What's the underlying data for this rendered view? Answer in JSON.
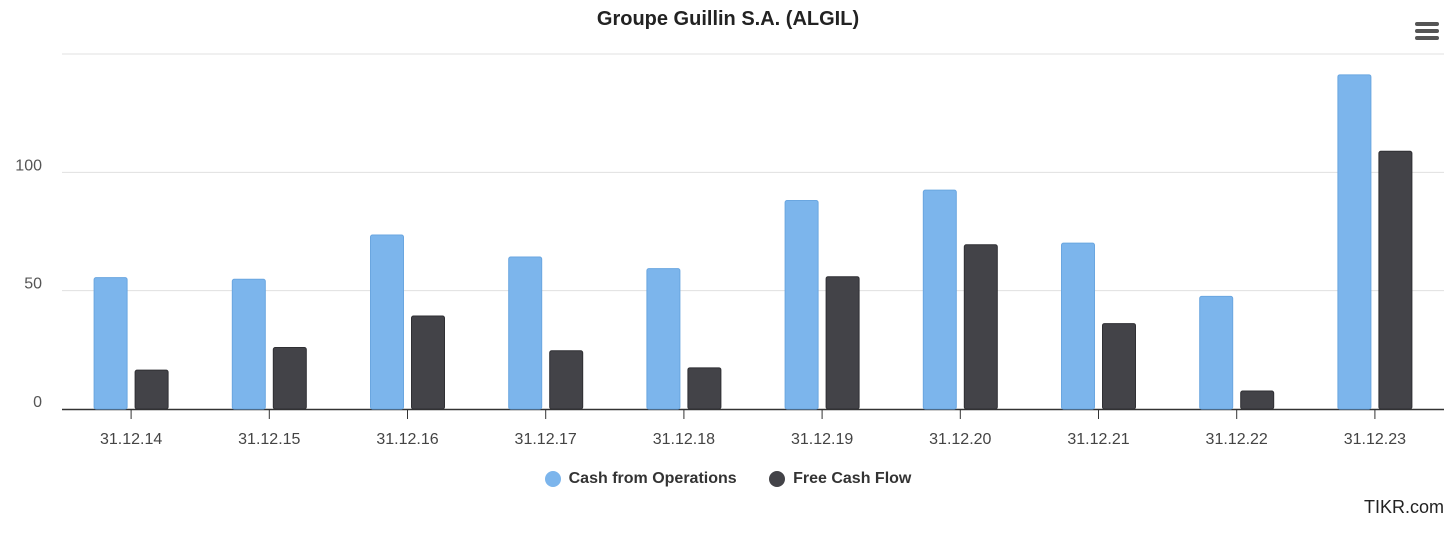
{
  "chart_data": {
    "type": "bar",
    "title": "Groupe Guillin S.A. (ALGIL)",
    "categories": [
      "31.12.14",
      "31.12.15",
      "31.12.16",
      "31.12.17",
      "31.12.18",
      "31.12.19",
      "31.12.20",
      "31.12.21",
      "31.12.22",
      "31.12.23"
    ],
    "series": [
      {
        "name": "Cash from Operations",
        "color": "#7cb5ec",
        "values": [
          55.5,
          54.8,
          73.5,
          64.2,
          59.3,
          88.1,
          92.5,
          70.1,
          47.6,
          141.2
        ]
      },
      {
        "name": "Free Cash Flow",
        "color": "#434348",
        "values": [
          16.4,
          26.0,
          39.3,
          24.6,
          17.4,
          55.9,
          69.4,
          36.1,
          7.6,
          108.9
        ]
      }
    ],
    "yticks": [
      "0",
      "50",
      "100"
    ],
    "ylim": [
      0,
      150
    ],
    "grid": true,
    "legend_position": "bottom-center"
  },
  "ui": {
    "menu_icon": "hamburger-menu-icon",
    "credit": "TIKR.com"
  }
}
